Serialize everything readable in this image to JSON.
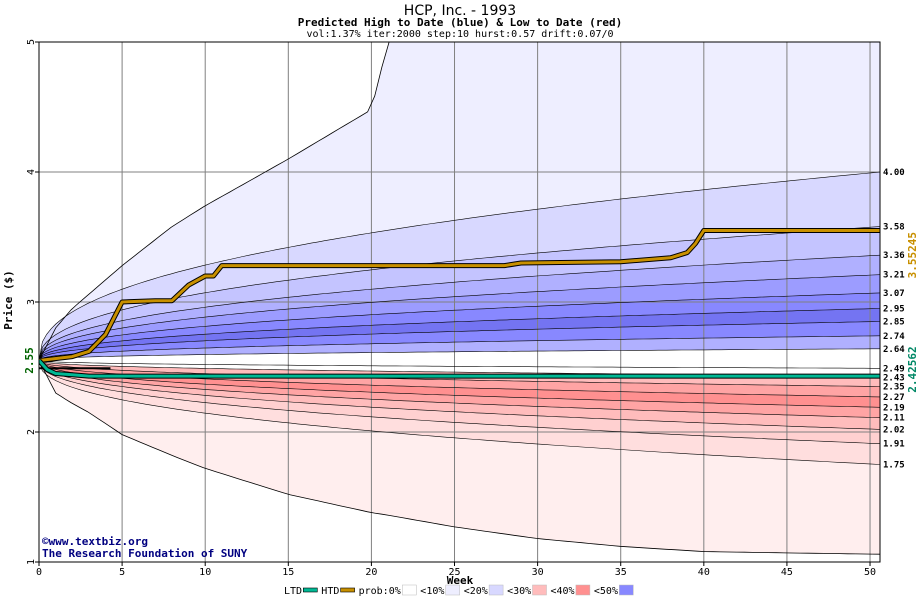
{
  "chart_data": {
    "type": "area",
    "title": "HCP, Inc. - 1993",
    "subtitle": "Predicted High to Date (blue) &  Low to Date (red)",
    "params": "vol:1.37% iter:2000 step:10 hurst:0.57 drift:0.07/0",
    "xlabel": "Week",
    "ylabel": "Price ($)",
    "xlim": [
      0,
      50.6
    ],
    "ylim": [
      1,
      5
    ],
    "x_ticks": [
      0,
      5,
      10,
      15,
      20,
      25,
      30,
      35,
      40,
      45,
      50
    ],
    "y_ticks": [
      1,
      2,
      3,
      4,
      5
    ],
    "grid": true,
    "start_price": 2.55,
    "start_price_label": "2.55",
    "end_x": 50.6,
    "outer_envelope": {
      "x": [
        0,
        1,
        2,
        3,
        5,
        8,
        10,
        15,
        20,
        21,
        25,
        30,
        35,
        40,
        45,
        50.6
      ],
      "upper": [
        2.55,
        2.8,
        2.95,
        3.06,
        3.28,
        3.58,
        3.74,
        4.1,
        4.48,
        5.0,
        5.0,
        5.0,
        5.0,
        5.0,
        5.0,
        5.0
      ],
      "lower": [
        2.55,
        2.3,
        2.22,
        2.15,
        1.98,
        1.82,
        1.72,
        1.52,
        1.38,
        1.36,
        1.27,
        1.18,
        1.12,
        1.08,
        1.07,
        1.06
      ]
    },
    "quantile_bands": {
      "end_values": [
        4.0,
        3.58,
        3.36,
        3.21,
        3.07,
        2.95,
        2.85,
        2.74,
        2.64,
        2.49,
        2.43,
        2.35,
        2.27,
        2.19,
        2.11,
        2.02,
        1.91,
        1.75
      ],
      "end_labels": [
        "4.00",
        "3.58",
        "3.36",
        "3.21",
        "3.07",
        "2.95",
        "2.85",
        "2.74",
        "2.64",
        "2.49",
        "2.43",
        "2.35",
        "2.27",
        "2.19",
        "2.11",
        "2.02",
        "1.91",
        "1.75"
      ],
      "fills": [
        "#eeeeff",
        "#d8d8ff",
        "#c4c4ff",
        "#b0b0ff",
        "#9c9cff",
        "#8888ff",
        "#7474f2",
        "#8888ff",
        "#b0b0ff",
        "#ffffff",
        "#ffffff",
        "#ffbcbc",
        "#ffa4a4",
        "#ff9090",
        "#ffa4a4",
        "#ffbcbc",
        "#ffd0d0",
        "#ffdede",
        "#ffeeee"
      ]
    },
    "series": [
      {
        "name": "HTD",
        "color": "#c89000",
        "x": [
          0,
          2,
          3,
          4,
          5,
          7,
          8,
          9,
          10,
          10.5,
          11,
          12,
          15,
          20,
          25,
          28,
          29,
          35,
          38,
          39,
          39.5,
          40,
          41,
          45,
          50.6
        ],
        "values": [
          2.55,
          2.58,
          2.62,
          2.75,
          3.0,
          3.01,
          3.01,
          3.13,
          3.2,
          3.2,
          3.28,
          3.28,
          3.28,
          3.28,
          3.28,
          3.28,
          3.3,
          3.31,
          3.34,
          3.38,
          3.45,
          3.55,
          3.55,
          3.55,
          3.55
        ]
      },
      {
        "name": "LTD",
        "color": "#00b894",
        "x": [
          0,
          0.5,
          1,
          2,
          3,
          5,
          10,
          20,
          30,
          40,
          50.6
        ],
        "values": [
          2.55,
          2.48,
          2.45,
          2.44,
          2.43,
          2.43,
          2.43,
          2.43,
          2.43,
          2.43,
          2.43
        ]
      }
    ],
    "right_labels": {
      "htd_end": "3.55245",
      "ltd_end": "2.42562"
    },
    "credits": {
      "site": "www.textbiz.org",
      "org": "The Research Foundation of SUNY"
    },
    "legend": {
      "position": "bottom",
      "items": [
        {
          "label": "LTD",
          "swatch": "#00b894",
          "kind": "line"
        },
        {
          "label": "HTD",
          "swatch": "#c89000",
          "kind": "line"
        },
        {
          "label": "prob:0%",
          "swatch": "#ffffff",
          "kind": "box"
        },
        {
          "label": "<10%",
          "swatch": "#eeeeff",
          "kind": "box"
        },
        {
          "label": "<20%",
          "swatch": "#d8d8ff",
          "kind": "box"
        },
        {
          "label": "<30%",
          "swatch": "#ffbcbc",
          "kind": "box"
        },
        {
          "label": "<40%",
          "swatch": "#ff9090",
          "kind": "box"
        },
        {
          "label": "<50%",
          "swatch": "#8888ff",
          "kind": "box"
        }
      ]
    }
  }
}
